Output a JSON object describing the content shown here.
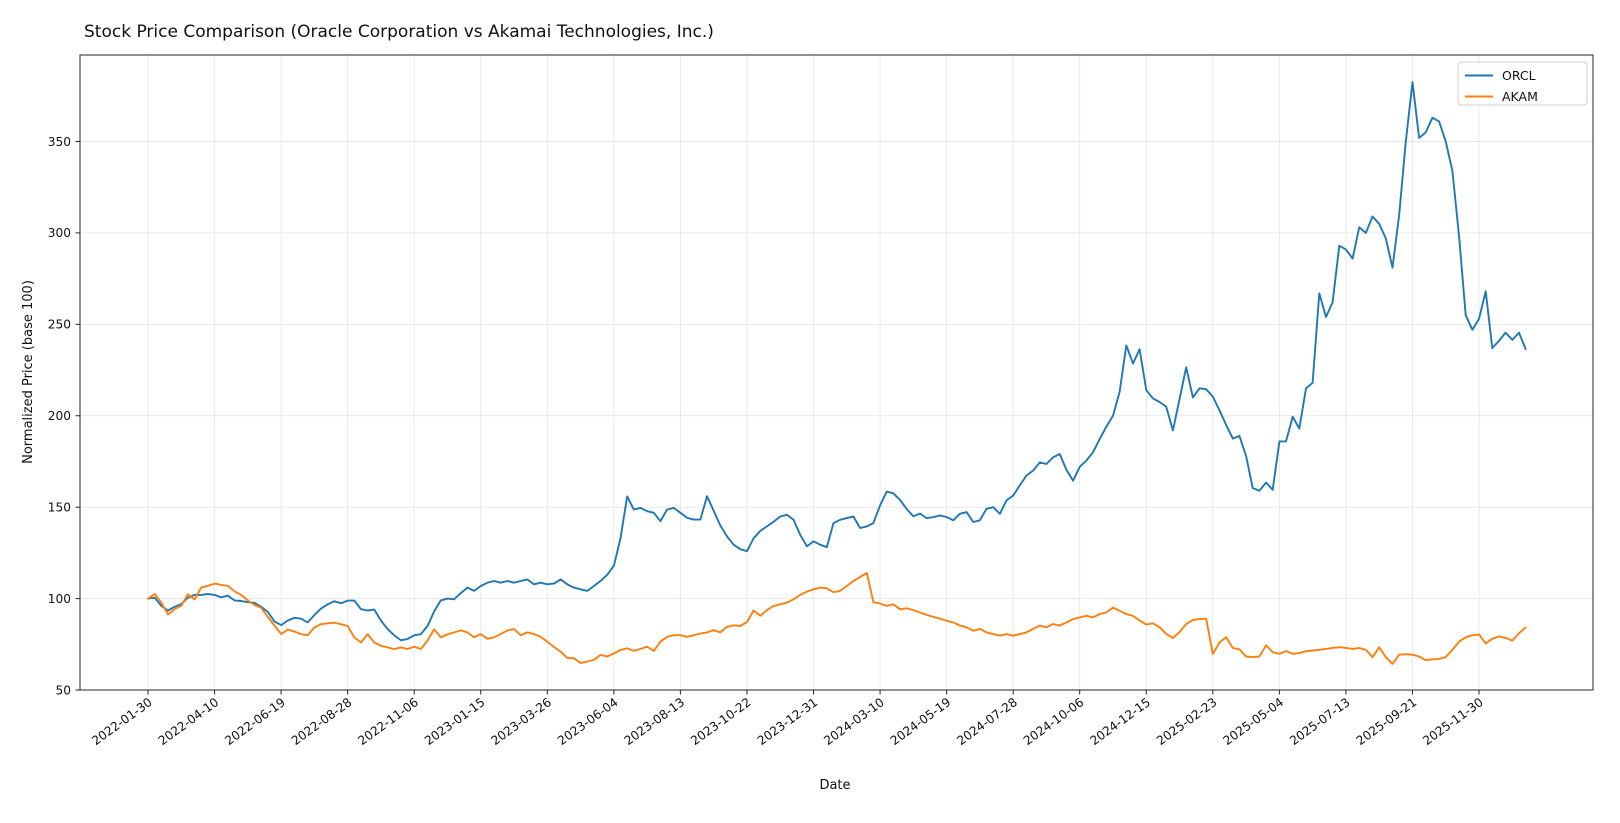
{
  "chart_data": {
    "type": "line",
    "title": "Stock Price Comparison (Oracle Corporation vs Akamai Technologies, Inc.)",
    "xlabel": "Date",
    "ylabel": "Normalized Price (base 100)",
    "grid": true,
    "legend_position": "upper right",
    "ylim": [
      50,
      397
    ],
    "y_ticks": [
      50,
      100,
      150,
      200,
      250,
      300,
      350
    ],
    "x_tick_labels": [
      "2022-01-30",
      "2022-04-10",
      "2022-06-19",
      "2022-08-28",
      "2022-11-06",
      "2023-01-15",
      "2023-03-26",
      "2023-06-04",
      "2023-08-13",
      "2023-10-22",
      "2023-12-31",
      "2024-03-10",
      "2024-05-19",
      "2024-07-28",
      "2024-10-06",
      "2024-12-15",
      "2025-02-23",
      "2025-05-04",
      "2025-07-13",
      "2025-09-21",
      "2025-11-30"
    ],
    "x_tick_interval_points": 10,
    "n_points": 208,
    "series": [
      {
        "name": "ORCL",
        "color": "#1f77b4",
        "values": [
          100,
          100.5,
          96,
          93.5,
          95.5,
          97,
          100.5,
          102,
          102,
          102.5,
          102,
          100.7,
          101.6,
          99,
          98.7,
          98,
          97.7,
          95.5,
          92.7,
          87.5,
          85.5,
          88,
          89.5,
          89,
          87,
          91,
          94.5,
          96.9,
          98.5,
          97.5,
          98.9,
          98.9,
          94.2,
          93.5,
          94,
          88,
          83.3,
          79.9,
          77.2,
          77.9,
          79.9,
          80.5,
          85,
          93,
          99,
          100,
          99.6,
          103,
          106,
          104.2,
          106.9,
          108.7,
          109.6,
          108.7,
          109.6,
          108.7,
          109.6,
          110.5,
          107.8,
          108.7,
          107.8,
          108.2,
          110.5,
          107.8,
          106,
          105.1,
          104.2,
          106.9,
          109.6,
          113,
          118,
          133,
          155.9,
          148.7,
          149.6,
          147.8,
          146.9,
          142.3,
          148.7,
          149.6,
          146.9,
          144.2,
          143.2,
          143.2,
          156,
          148,
          140,
          134,
          129.5,
          127,
          125.9,
          133,
          137,
          139.5,
          142,
          144.9,
          145.8,
          143.1,
          134.9,
          128.6,
          131.3,
          129.5,
          128.1,
          141.3,
          143.1,
          144,
          144.9,
          138.6,
          139.5,
          141.3,
          151,
          158.5,
          157.6,
          154,
          149,
          145,
          146.5,
          144,
          144.5,
          145.5,
          144.6,
          142.8,
          146.4,
          147.3,
          141.9,
          142.8,
          149.1,
          150,
          146.4,
          153.7,
          156.4,
          161.9,
          167.3,
          170,
          174.5,
          173.6,
          177.3,
          179.1,
          170.5,
          164.5,
          172,
          175.5,
          180,
          187.3,
          194,
          200,
          213,
          238.5,
          228.5,
          236.4,
          214,
          209.5,
          207.5,
          205,
          192,
          209,
          226.5,
          210,
          215,
          214.5,
          210.5,
          203,
          195,
          187.5,
          189,
          178,
          160.5,
          159,
          163.5,
          159.5,
          186,
          186,
          199.5,
          193,
          215,
          218,
          267,
          254,
          262,
          293,
          291,
          286,
          303,
          300,
          309,
          305,
          297,
          281,
          310,
          350,
          382.5,
          352,
          355,
          363,
          361,
          350,
          334,
          298,
          255,
          247,
          253,
          268,
          237,
          241,
          245.5,
          241.5,
          245.5,
          236.5
        ]
      },
      {
        "name": "AKAM",
        "color": "#ff7f0e",
        "values": [
          100,
          102.5,
          97.8,
          91.3,
          94.2,
          96.1,
          102.3,
          99.5,
          106,
          107,
          108.2,
          107.5,
          107,
          104,
          102,
          99,
          96.5,
          95,
          90,
          85.3,
          80.6,
          83,
          82,
          80.5,
          80,
          84.2,
          86,
          86.5,
          86.8,
          86,
          85,
          78.7,
          76,
          80.5,
          76,
          74.2,
          73.3,
          72.4,
          73.3,
          72.4,
          73.7,
          72.4,
          77,
          83.2,
          78.8,
          80.4,
          81.5,
          82.6,
          81.5,
          78.8,
          80.6,
          78,
          78.8,
          80.6,
          82.6,
          83.3,
          80,
          81.5,
          80.6,
          79.1,
          76.4,
          73.5,
          71,
          67.5,
          67.4,
          64.7,
          65.6,
          66.5,
          69.2,
          68.3,
          70,
          71.9,
          72.8,
          71.4,
          72.5,
          73.7,
          71.4,
          76.4,
          79.1,
          80,
          80,
          79.1,
          80,
          80.9,
          81.5,
          82.7,
          81.5,
          84.5,
          85.4,
          85,
          87.2,
          93.5,
          90.6,
          93.7,
          96,
          96.9,
          97.8,
          99.6,
          102,
          103.8,
          105.1,
          106,
          105.6,
          103.5,
          104.2,
          106.9,
          109.6,
          111.8,
          114,
          98,
          97.3,
          96,
          96.9,
          94.2,
          94.7,
          93.7,
          92.4,
          91.1,
          90,
          89,
          87.9,
          87,
          85.2,
          84.3,
          82.4,
          83.4,
          81.5,
          80.6,
          79.7,
          80.6,
          79.7,
          80.6,
          81.5,
          83.4,
          85.2,
          84.3,
          86.1,
          85.2,
          87,
          88.8,
          89.7,
          90.6,
          89.7,
          91.5,
          92.4,
          95.1,
          93.3,
          91.5,
          90.6,
          88,
          85.8,
          86.5,
          84.3,
          80.7,
          78.5,
          81.6,
          86.1,
          88.3,
          88.8,
          89,
          69.7,
          76,
          78.9,
          73,
          72.2,
          68.3,
          68,
          68.3,
          74.5,
          70.7,
          69.8,
          71.3,
          69.8,
          70.2,
          71.2,
          71.6,
          72,
          72.5,
          73,
          73.4,
          73,
          72.5,
          72.9,
          72,
          67.9,
          73.4,
          68,
          64.3,
          69.3,
          69.6,
          69.3,
          68.3,
          66.3,
          66.8,
          67,
          68,
          72,
          76.5,
          78.8,
          80,
          80.4,
          75.5,
          78,
          79.3,
          78.5,
          77,
          81,
          84.2
        ]
      }
    ],
    "style": {
      "grid_color": "#e7e7e7",
      "spine_color": "#262626",
      "background": "#ffffff",
      "legend_border": "#d0d0d0"
    }
  }
}
